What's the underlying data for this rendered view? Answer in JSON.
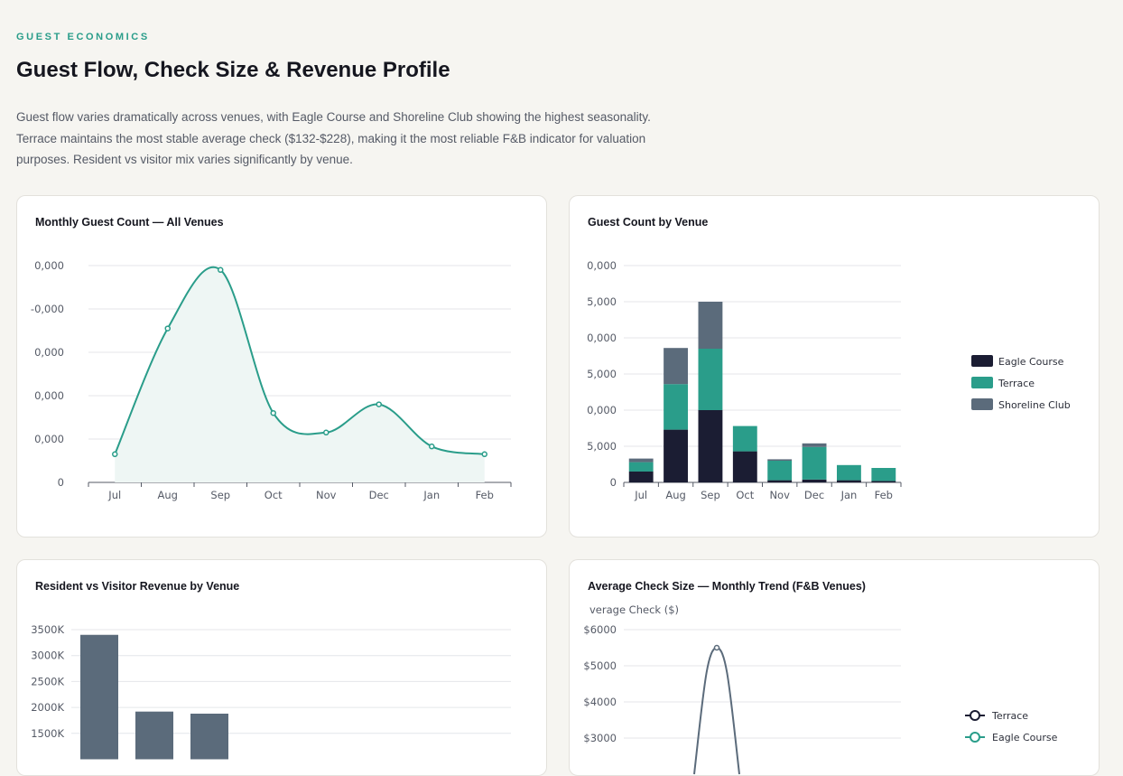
{
  "header": {
    "eyebrow": "GUEST ECONOMICS",
    "title": "Guest Flow, Check Size & Revenue Profile",
    "description": "Guest flow varies dramatically across venues, with Eagle Course and Shoreline Club showing the highest seasonality. Terrace maintains the most stable average check ($132-$228), making it the most reliable F&B indicator for valuation purposes. Resident vs visitor mix varies significantly by venue."
  },
  "colors": {
    "teal": "#2a9d8a",
    "navy": "#1b1d33",
    "slate": "#5b6b7b",
    "fill": "#eef6f4"
  },
  "chart_data": [
    {
      "type": "area",
      "title": "Monthly Guest Count — All Venues",
      "categories": [
        "Jul",
        "Aug",
        "Sep",
        "Oct",
        "Nov",
        "Dec",
        "Jan",
        "Feb"
      ],
      "y_tick_labels": [
        "0",
        "0,000",
        "0,000",
        "0,000",
        "-0,000",
        "0,000"
      ],
      "ylim": [
        0,
        50000
      ],
      "series": [
        {
          "values": [
            6500,
            35500,
            49000,
            16000,
            11500,
            18000,
            8300,
            6500
          ]
        }
      ]
    },
    {
      "type": "bar",
      "stacked": true,
      "title": "Guest Count by Venue",
      "categories": [
        "Jul",
        "Aug",
        "Sep",
        "Oct",
        "Nov",
        "Dec",
        "Jan",
        "Feb"
      ],
      "y_tick_labels": [
        "0",
        "5,000",
        "0,000",
        "5,000",
        "0,000",
        "5,000",
        "0,000"
      ],
      "ylim": [
        0,
        30000
      ],
      "legend_position": "right",
      "series": [
        {
          "name": "Eagle Course",
          "color": "#1b1d33",
          "values": [
            1500,
            7300,
            10000,
            4300,
            300,
            400,
            300,
            200
          ]
        },
        {
          "name": "Terrace",
          "color": "#2a9d8a",
          "values": [
            1300,
            6300,
            8500,
            3500,
            2700,
            4500,
            2100,
            1800
          ]
        },
        {
          "name": "Shoreline Club",
          "color": "#5b6b7b",
          "values": [
            500,
            5000,
            6500,
            0,
            200,
            500,
            0,
            0
          ]
        }
      ]
    },
    {
      "type": "bar",
      "title": "Resident vs Visitor Revenue by Venue",
      "y_tick_labels": [
        "1500K",
        "2000K",
        "2500K",
        "3000K",
        "3500K"
      ],
      "ylim": [
        1000000,
        3500000
      ],
      "series": [
        {
          "color": "#5b6b7b",
          "values": [
            3400000,
            1920000,
            1880000
          ]
        }
      ]
    },
    {
      "type": "line",
      "title": "Average Check Size — Monthly Trend (F&B Venues)",
      "ylabel_partial": "verage Check ($)",
      "y_tick_labels": [
        "$3000",
        "$4000",
        "$5000",
        "$6000"
      ],
      "legend_position": "right",
      "series": [
        {
          "name": "Terrace",
          "color": "#1b1d33"
        },
        {
          "name": "Eagle Course",
          "color": "#2a9d8a"
        },
        {
          "name": "",
          "color": "#5b6b7b",
          "peak_value": 5500
        }
      ]
    }
  ]
}
